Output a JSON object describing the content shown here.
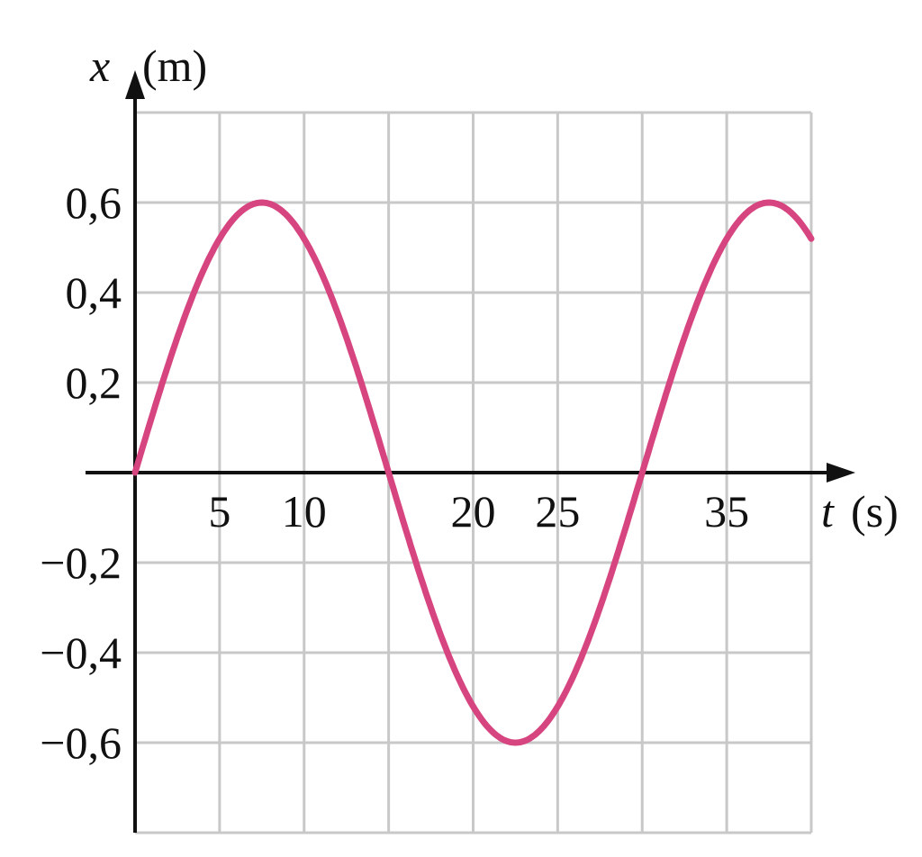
{
  "chart_data": {
    "type": "line",
    "title": "",
    "xlabel": {
      "symbol": "t",
      "unit": "(s)"
    },
    "ylabel": {
      "symbol": "x",
      "unit": "(m)"
    },
    "xlim": [
      0,
      40
    ],
    "ylim": [
      -0.8,
      0.8
    ],
    "grid": true,
    "grid_x_step": 5,
    "grid_y_step": 0.2,
    "x_tick_values": [
      5,
      10,
      20,
      25,
      35
    ],
    "x_tick_labels": [
      "5",
      "10",
      "20",
      "25",
      "35"
    ],
    "y_tick_values": [
      0.6,
      0.4,
      0.2,
      -0.2,
      -0.4,
      -0.6
    ],
    "y_tick_labels": [
      "0,6",
      "0,4",
      "0,2",
      "−0,2",
      "−0,4",
      "−0,6"
    ],
    "series": [
      {
        "function": "x = 0.6 sin(2π t / 30)",
        "amplitude": 0.6,
        "period": 30,
        "t_range": [
          0,
          40
        ],
        "points": [
          [
            0,
            0
          ],
          [
            7.5,
            0.6
          ],
          [
            15,
            0
          ],
          [
            22.5,
            -0.6
          ],
          [
            30,
            0
          ],
          [
            37.5,
            0.6
          ],
          [
            40,
            0.52
          ]
        ],
        "color": "#d6457f"
      }
    ],
    "colors": {
      "grid": "#c8c8c8",
      "axis": "#111111",
      "curve": "#d6457f"
    }
  }
}
